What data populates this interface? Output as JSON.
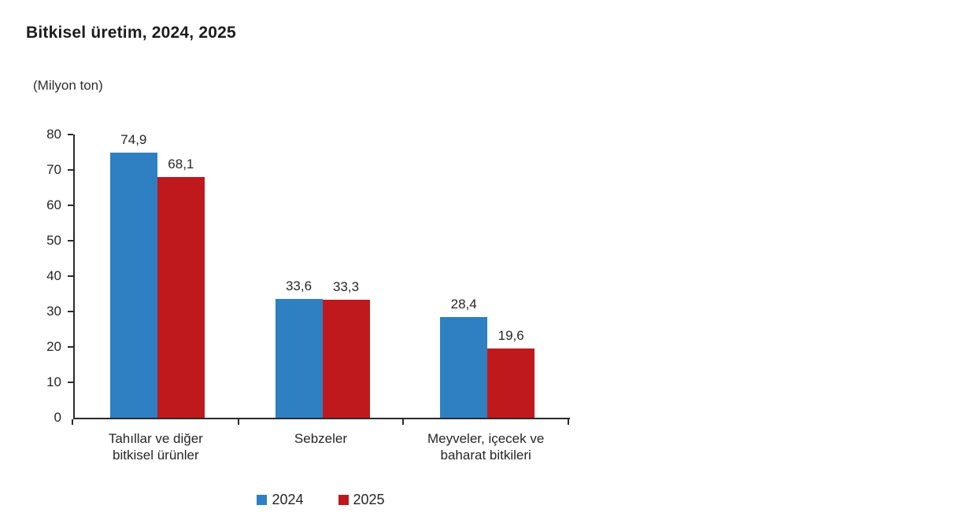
{
  "page": {
    "background": "#ffffff"
  },
  "chart_data": {
    "type": "bar",
    "title": "Bitkisel üretim, 2024, 2025",
    "unit_label": "(Milyon ton)",
    "xlabel": "",
    "ylabel": "Milyon ton",
    "categories": [
      "Tahıllar ve diğer bitkisel ürünler",
      "Sebzeler",
      "Meyveler, içecek ve baharat bitkileri"
    ],
    "category_lines": [
      [
        "Tahıllar ve diğer",
        "bitkisel ürünler"
      ],
      [
        "Sebzeler"
      ],
      [
        "Meyveler, içecek ve",
        "baharat bitkileri"
      ]
    ],
    "series": [
      {
        "name": "2024",
        "color": "#2e80c3",
        "values": [
          74.9,
          33.6,
          28.4
        ],
        "labels": [
          "74,9",
          "33,6",
          "28,4"
        ]
      },
      {
        "name": "2025",
        "color": "#bf191d",
        "values": [
          68.1,
          33.3,
          19.6
        ],
        "labels": [
          "68,1",
          "33,3",
          "19,6"
        ]
      }
    ],
    "ylim": [
      0,
      80
    ],
    "yticks": [
      0,
      10,
      20,
      30,
      40,
      50,
      60,
      70,
      80
    ],
    "grid": false,
    "legend_position": "bottom",
    "colors": {
      "axis": "#2b2b2b",
      "text": "#262626"
    }
  }
}
